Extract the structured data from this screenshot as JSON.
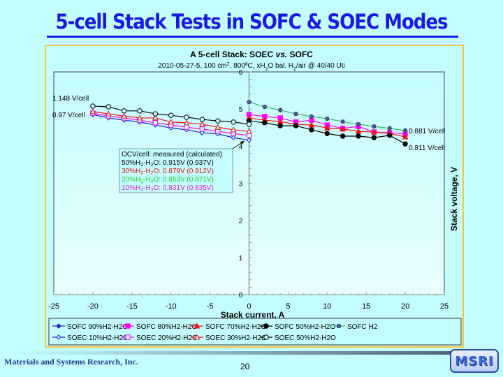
{
  "slide": {
    "title": "5-cell Stack Tests in SOFC & SOEC Modes",
    "company": "Materials and Systems Research, Inc.",
    "page_number": "20",
    "logo_text": "MSRI"
  },
  "chart_data": {
    "type": "line",
    "title": "A 5-cell Stack: SOEC vs. SOFC",
    "subtitle_parts": [
      "2010-05-27-5, 100 cm",
      "2",
      ", 800ºC, xH",
      "2",
      "O bal. H",
      "2",
      "/air @ 40/40 Uti"
    ],
    "xlabel": "Stack current, A",
    "ylabel": "Stack voltage, V",
    "xlim": [
      -25,
      25
    ],
    "ylim": [
      0,
      6
    ],
    "x_ticks": [
      -25,
      -20,
      -15,
      -10,
      -5,
      0,
      5,
      10,
      15,
      20,
      25
    ],
    "y_ticks": [
      0,
      1,
      2,
      3,
      4,
      5,
      6
    ],
    "grid": false,
    "legend_position": "bottom",
    "series": [
      {
        "name": "SOFC 90%H2-H2O",
        "color": "#2222dd",
        "marker": "diamond-filled",
        "x": [
          0
        ],
        "y": [
          4.62
        ]
      },
      {
        "name": "SOFC 80%H2-H2O",
        "color": "#ff00ff",
        "marker": "square-filled",
        "x": [
          0,
          2,
          4,
          6,
          8,
          10,
          12,
          14,
          16,
          18,
          20
        ],
        "y": [
          4.85,
          4.8,
          4.76,
          4.65,
          4.7,
          4.57,
          4.48,
          4.53,
          4.38,
          4.36,
          4.33
        ]
      },
      {
        "name": "SOFC 70%H2-H2O",
        "color": "#ee1111",
        "marker": "triangle-filled",
        "x": [
          0,
          2,
          4,
          6,
          8,
          10,
          12,
          14,
          16,
          18,
          20
        ],
        "y": [
          4.76,
          4.7,
          4.66,
          4.59,
          4.57,
          4.49,
          4.46,
          4.4,
          4.38,
          4.34,
          4.25
        ]
      },
      {
        "name": "SOFC 50%H2-H2O",
        "color": "#000000",
        "marker": "circle-filled",
        "x": [
          0,
          2,
          4,
          6,
          8,
          10,
          12,
          14,
          16,
          18,
          20
        ],
        "y": [
          4.68,
          4.63,
          4.55,
          4.55,
          4.44,
          4.34,
          4.27,
          4.27,
          4.23,
          4.29,
          4.06
        ]
      },
      {
        "name": "SOFC H2",
        "color": "#33bb55",
        "marker_color": "#222266",
        "marker": "star",
        "x": [
          0,
          2,
          4,
          6,
          8,
          10,
          12,
          14,
          16,
          18,
          20
        ],
        "y": [
          5.19,
          5.06,
          4.97,
          4.87,
          4.8,
          4.74,
          4.66,
          4.59,
          4.53,
          4.48,
          4.42
        ]
      },
      {
        "name": "SOEC 10%H2-H2O",
        "color": "#2222dd",
        "marker": "diamond-open",
        "x": [
          -20,
          -18,
          -16,
          -14,
          -12,
          -10,
          -8,
          -6,
          -4,
          -2,
          0
        ],
        "y": [
          4.85,
          4.76,
          4.7,
          4.65,
          4.57,
          4.49,
          4.44,
          4.36,
          4.33,
          4.23,
          4.16
        ]
      },
      {
        "name": "SOEC 20%H2-H2O",
        "color": "#ff00ff",
        "marker": "square-open",
        "x": [
          -20,
          -18,
          -16,
          -14,
          -12,
          -10,
          -8,
          -6,
          -4,
          -2,
          0
        ],
        "y": [
          4.89,
          4.81,
          4.76,
          4.7,
          4.63,
          4.57,
          4.51,
          4.46,
          4.4,
          4.34,
          4.29
        ]
      },
      {
        "name": "SOEC 30%H2-H2O",
        "color": "#ee1111",
        "marker": "triangle-open",
        "x": [
          -20,
          -18,
          -16,
          -14,
          -12,
          -10,
          -8,
          -6,
          -4,
          -2,
          0
        ],
        "y": [
          4.93,
          4.87,
          4.81,
          4.76,
          4.76,
          4.65,
          4.63,
          4.59,
          4.51,
          4.44,
          4.4
        ]
      },
      {
        "name": "SOEC 50%H2-H2O",
        "color": "#000000",
        "marker": "circle-open",
        "x": [
          -20,
          -18,
          -16,
          -14,
          -12,
          -10,
          -8,
          -6,
          -4,
          -2,
          0
        ],
        "y": [
          5.08,
          5.06,
          4.95,
          4.95,
          4.87,
          4.83,
          4.78,
          4.72,
          4.68,
          4.65,
          4.59
        ]
      }
    ],
    "annotations": [
      {
        "text": "1.148 V/cell",
        "x": -20,
        "side": "left",
        "y": 5.3
      },
      {
        "text": "0.97 V/cell",
        "x": -20,
        "side": "left",
        "y": 4.85
      },
      {
        "text": "0.881 V/cell",
        "x": 20,
        "side": "right",
        "y": 4.42
      },
      {
        "text": "0.811 V/cell",
        "x": 20,
        "side": "right",
        "y": 3.97
      }
    ],
    "ocv_box": {
      "header": [
        "OCV/cell:",
        "measured (calculated)"
      ],
      "rows": [
        {
          "label_pre": "50%H",
          "label_sub1": "2",
          "label_mid": "-H",
          "label_sub2": "2",
          "label_post": "O:",
          "measured": "0.915V",
          "calculated": "(0.937V)",
          "color": "#000000"
        },
        {
          "label_pre": "30%H",
          "label_sub1": "2",
          "label_mid": "-H",
          "label_sub2": "2",
          "label_post": "O:",
          "measured": "0.879V",
          "calculated": "(0.912V)",
          "color": "#dd1111"
        },
        {
          "label_pre": "20%H",
          "label_sub1": "2",
          "label_mid": "-H",
          "label_sub2": "2",
          "label_post": "O:",
          "measured": "0.853V",
          "calculated": "(0.871V)",
          "color": "#22cc22"
        },
        {
          "label_pre": "10%H",
          "label_sub1": "2",
          "label_mid": "-H",
          "label_sub2": "2",
          "label_post": "O:",
          "measured": "0.831V",
          "calculated": "(0.835V)",
          "color": "#dd22dd"
        }
      ]
    }
  }
}
